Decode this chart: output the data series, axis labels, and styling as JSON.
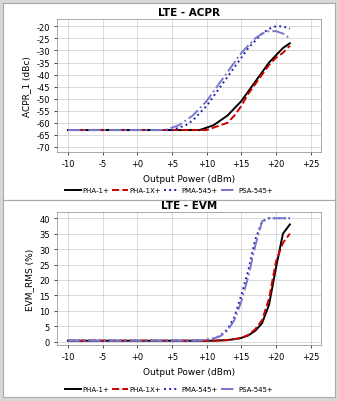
{
  "title1": "LTE - ACPR",
  "title2": "LTE - EVM",
  "xlabel": "Output Power (dBm)",
  "ylabel1": "ACPR_1 (dBc)",
  "ylabel2": "EVM_RMS (%)",
  "x_ticks": [
    -10,
    -5,
    0,
    5,
    10,
    15,
    20,
    25
  ],
  "x_tick_labels": [
    "-10",
    "-5",
    "+0",
    "+5",
    "+10",
    "+15",
    "+20",
    "+25"
  ],
  "acpr_yticks": [
    -20,
    -25,
    -30,
    -35,
    -40,
    -45,
    -50,
    -55,
    -60,
    -65,
    -70
  ],
  "evm_yticks": [
    0,
    5,
    10,
    15,
    20,
    25,
    30,
    35,
    40
  ],
  "xlim": [
    -11.5,
    26.5
  ],
  "acpr_ylim": [
    -72,
    -17
  ],
  "evm_ylim": [
    -1,
    42
  ],
  "legend_labels": [
    "PHA-1+",
    "PHA-1X+",
    "PMA-545+",
    "PSA-545+"
  ],
  "colors": [
    "#000000",
    "#cc0000",
    "#2222aa",
    "#7777cc"
  ],
  "linestyles": [
    "-",
    "--",
    ":",
    "-."
  ],
  "linewidths": [
    1.4,
    1.4,
    1.4,
    1.4
  ],
  "bg_color": "#d8d8d8",
  "plot_bg": "#ffffff",
  "frame_color": "#ffffff",
  "acpr_data": {
    "pha1_x": [
      -10,
      -9,
      -8,
      -7,
      -6,
      -5,
      -4,
      -3,
      -2,
      -1,
      0,
      1,
      2,
      3,
      4,
      5,
      6,
      7,
      8,
      9,
      10,
      11,
      12,
      13,
      14,
      15,
      16,
      17,
      18,
      19,
      20,
      21,
      22
    ],
    "pha1_y": [
      -63,
      -63,
      -63,
      -63,
      -63,
      -63,
      -63,
      -63,
      -63,
      -63,
      -63,
      -63,
      -63,
      -63,
      -63,
      -63,
      -63,
      -63,
      -63,
      -63,
      -62,
      -61,
      -59,
      -57,
      -54,
      -51,
      -47,
      -43,
      -39,
      -35,
      -32,
      -29,
      -27
    ],
    "pha1x_x": [
      -10,
      -9,
      -8,
      -7,
      -6,
      -5,
      -4,
      -3,
      -2,
      -1,
      0,
      1,
      2,
      3,
      4,
      5,
      6,
      7,
      8,
      9,
      10,
      11,
      12,
      13,
      14,
      15,
      16,
      17,
      18,
      19,
      20,
      21,
      22
    ],
    "pha1x_y": [
      -63,
      -63,
      -63,
      -63,
      -63,
      -63,
      -63,
      -63,
      -63,
      -63,
      -63,
      -63,
      -63,
      -63,
      -63,
      -63,
      -63,
      -63,
      -63,
      -63,
      -63,
      -62,
      -61,
      -60,
      -57,
      -53,
      -48,
      -44,
      -40,
      -36,
      -33,
      -31,
      -28
    ],
    "pma545_x": [
      -10,
      -9,
      -8,
      -7,
      -6,
      -5,
      -4,
      -3,
      -2,
      -1,
      0,
      1,
      2,
      3,
      4,
      5,
      6,
      7,
      8,
      9,
      10,
      11,
      12,
      13,
      14,
      15,
      16,
      17,
      18,
      19,
      20,
      21,
      22
    ],
    "pma545_y": [
      -63,
      -63,
      -63,
      -63,
      -63,
      -63,
      -63,
      -63,
      -63,
      -63,
      -63,
      -63,
      -63,
      -63,
      -63,
      -63,
      -62,
      -61,
      -59,
      -56,
      -53,
      -49,
      -45,
      -41,
      -37,
      -33,
      -29,
      -26,
      -23,
      -21,
      -20,
      -20,
      -21
    ],
    "psa545_x": [
      -10,
      -9,
      -8,
      -7,
      -6,
      -5,
      -4,
      -3,
      -2,
      -1,
      0,
      1,
      2,
      3,
      4,
      5,
      6,
      7,
      8,
      9,
      10,
      11,
      12,
      13,
      14,
      15,
      16,
      17,
      18,
      19,
      20,
      21,
      22
    ],
    "psa545_y": [
      -63,
      -63,
      -63,
      -63,
      -63,
      -63,
      -63,
      -63,
      -63,
      -63,
      -63,
      -63,
      -63,
      -63,
      -63,
      -62,
      -61,
      -59,
      -57,
      -54,
      -51,
      -47,
      -43,
      -39,
      -35,
      -31,
      -28,
      -25,
      -23,
      -22,
      -22,
      -23,
      -25
    ]
  },
  "evm_data": {
    "pha1_x": [
      -10,
      -9,
      -8,
      -7,
      -6,
      -5,
      -4,
      -3,
      -2,
      -1,
      0,
      1,
      2,
      3,
      4,
      5,
      6,
      7,
      8,
      9,
      10,
      11,
      12,
      13,
      14,
      15,
      16,
      17,
      18,
      19,
      20,
      21,
      22
    ],
    "pha1_y": [
      0.3,
      0.3,
      0.3,
      0.3,
      0.3,
      0.3,
      0.3,
      0.3,
      0.3,
      0.3,
      0.3,
      0.3,
      0.3,
      0.3,
      0.3,
      0.3,
      0.3,
      0.3,
      0.3,
      0.3,
      0.3,
      0.3,
      0.4,
      0.5,
      0.8,
      1.2,
      2.0,
      3.5,
      6,
      12,
      24,
      35,
      38
    ],
    "pha1x_x": [
      -10,
      -9,
      -8,
      -7,
      -6,
      -5,
      -4,
      -3,
      -2,
      -1,
      0,
      1,
      2,
      3,
      4,
      5,
      6,
      7,
      8,
      9,
      10,
      11,
      12,
      13,
      14,
      15,
      16,
      17,
      18,
      19,
      20,
      21,
      22
    ],
    "pha1x_y": [
      0.3,
      0.3,
      0.3,
      0.3,
      0.3,
      0.3,
      0.3,
      0.3,
      0.3,
      0.3,
      0.3,
      0.3,
      0.3,
      0.3,
      0.3,
      0.3,
      0.3,
      0.3,
      0.3,
      0.3,
      0.3,
      0.3,
      0.4,
      0.5,
      0.8,
      1.2,
      2.2,
      4.0,
      7,
      14,
      26,
      32,
      35
    ],
    "pma545_x": [
      -10,
      -9,
      -8,
      -7,
      -6,
      -5,
      -4,
      -3,
      -2,
      -1,
      0,
      1,
      2,
      3,
      4,
      5,
      6,
      7,
      8,
      9,
      10,
      11,
      12,
      13,
      14,
      15,
      16,
      17,
      18,
      19,
      20,
      21,
      22
    ],
    "pma545_y": [
      0.3,
      0.3,
      0.3,
      0.3,
      0.3,
      0.3,
      0.3,
      0.3,
      0.3,
      0.3,
      0.3,
      0.3,
      0.3,
      0.3,
      0.3,
      0.3,
      0.3,
      0.3,
      0.3,
      0.4,
      0.6,
      1.0,
      2.0,
      4.0,
      8,
      15,
      23,
      33,
      39,
      40,
      40,
      40,
      40
    ],
    "psa545_x": [
      -10,
      -9,
      -8,
      -7,
      -6,
      -5,
      -4,
      -3,
      -2,
      -1,
      0,
      1,
      2,
      3,
      4,
      5,
      6,
      7,
      8,
      9,
      10,
      11,
      12,
      13,
      14,
      15,
      16,
      17,
      18,
      19,
      20,
      21,
      22
    ],
    "psa545_y": [
      0.3,
      0.3,
      0.3,
      0.3,
      0.3,
      0.3,
      0.3,
      0.3,
      0.3,
      0.3,
      0.3,
      0.3,
      0.3,
      0.3,
      0.3,
      0.3,
      0.3,
      0.3,
      0.3,
      0.4,
      0.6,
      1.0,
      1.8,
      3.5,
      7,
      13,
      21,
      31,
      39,
      40,
      40,
      40,
      40
    ]
  }
}
